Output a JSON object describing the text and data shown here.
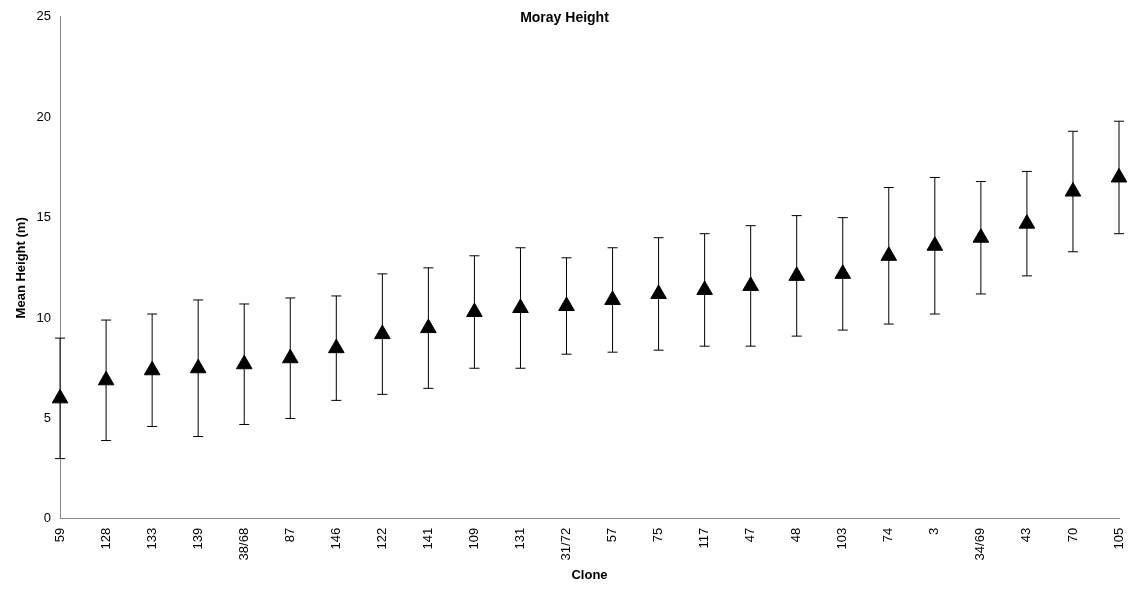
{
  "chart_data": {
    "type": "scatter",
    "title": "Moray Height",
    "xlabel": "Clone",
    "ylabel": "Mean Height (m)",
    "categories": [
      "59",
      "128",
      "133",
      "139",
      "38/68",
      "87",
      "146",
      "122",
      "141",
      "109",
      "131",
      "31/72",
      "57",
      "75",
      "117",
      "47",
      "48",
      "103",
      "74",
      "3",
      "34/69",
      "43",
      "70",
      "105"
    ],
    "values": [
      6.0,
      6.9,
      7.4,
      7.5,
      7.7,
      8.0,
      8.5,
      9.2,
      9.5,
      10.3,
      10.5,
      10.6,
      10.9,
      11.2,
      11.4,
      11.6,
      12.1,
      12.2,
      13.1,
      13.6,
      14.0,
      14.7,
      16.3,
      17.0
    ],
    "errors": [
      3.0,
      3.0,
      2.8,
      3.4,
      3.0,
      3.0,
      2.6,
      3.0,
      3.0,
      2.8,
      3.0,
      2.4,
      2.6,
      2.8,
      2.8,
      3.0,
      3.0,
      2.8,
      3.4,
      3.4,
      2.8,
      2.6,
      3.0,
      2.8
    ],
    "color": "#000000",
    "marker": "triangle",
    "ylim": [
      0,
      25
    ],
    "yticks": [
      0,
      5,
      10,
      15,
      20,
      25
    ],
    "grid": false,
    "legend": false
  }
}
